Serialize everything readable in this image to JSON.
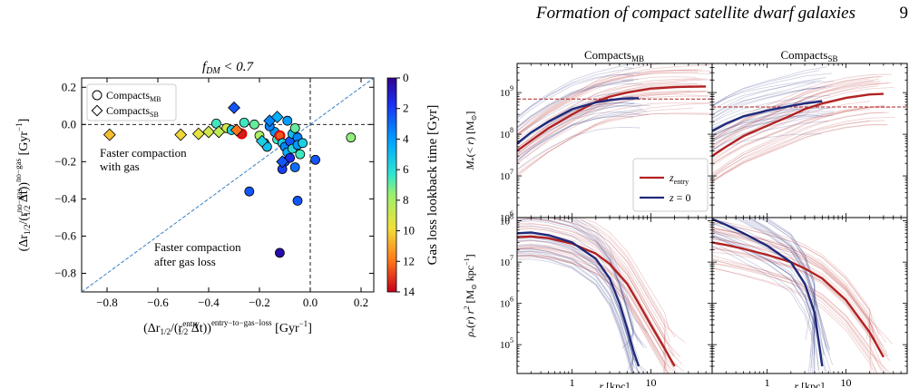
{
  "header": {
    "running_title": "Formation of compact satellite dwarf galaxies",
    "page_number": "9"
  },
  "colors": {
    "zentry_line": "#b22222",
    "z0_line": "#1f2a7a",
    "diag_line": "#3a7fc1",
    "ref_hline": "#b22222"
  },
  "chart_data": [
    {
      "type": "scatter",
      "title": "f_DM < 0.7",
      "xlabel": "(Δr_1/2/(r_1/2^entry Δt))^entry−to−gas−loss [Gyr^−1]",
      "ylabel": "(Δr_1/2/(r_1/2^no−gas Δt))^no−gas [Gyr^−1]",
      "xlim": [
        -0.9,
        0.25
      ],
      "ylim": [
        -0.9,
        0.25
      ],
      "xticks": [
        -0.8,
        -0.6,
        -0.4,
        -0.2,
        0.0,
        0.2
      ],
      "yticks": [
        -0.8,
        -0.6,
        -0.4,
        -0.2,
        0.0,
        0.2
      ],
      "xtick_labels": [
        "−0.8",
        "−0.6",
        "−0.4",
        "−0.2",
        "0.0",
        "0.2"
      ],
      "ytick_labels": [
        "−0.8",
        "−0.6",
        "−0.4",
        "−0.2",
        "0.0",
        "0.2"
      ],
      "legend": {
        "position": "top-left",
        "entries": [
          "Compacts_MB",
          "Compacts_SB"
        ]
      },
      "annotations": [
        "Faster compaction",
        "with gas",
        "Faster compaction",
        "after gas loss"
      ],
      "colorbar": {
        "label": "Gas loss lookback time [Gyr]",
        "range": [
          0,
          14
        ],
        "ticks": [
          "0",
          "2",
          "4",
          "6",
          "8",
          "10",
          "12",
          "14"
        ],
        "colormap": "jet-reversed"
      },
      "series": [
        {
          "name": "Compacts_MB",
          "marker": "circle",
          "points": [
            {
              "x": -0.37,
              "y": 0.005,
              "t": 6.5
            },
            {
              "x": -0.33,
              "y": -0.02,
              "t": 9.0
            },
            {
              "x": -0.31,
              "y": -0.03,
              "t": 5.5
            },
            {
              "x": -0.27,
              "y": -0.05,
              "t": 13.5,
              "highlight": true
            },
            {
              "x": -0.26,
              "y": 0.01,
              "t": 6.5
            },
            {
              "x": -0.22,
              "y": 0.0,
              "t": 7.0
            },
            {
              "x": -0.2,
              "y": -0.06,
              "t": 8.0
            },
            {
              "x": -0.18,
              "y": -0.1,
              "t": 6.0
            },
            {
              "x": -0.17,
              "y": -0.12,
              "t": 5.0
            },
            {
              "x": -0.14,
              "y": -0.04,
              "t": 4.0
            },
            {
              "x": -0.13,
              "y": -0.08,
              "t": 6.5
            },
            {
              "x": -0.12,
              "y": -0.06,
              "t": 12.5,
              "highlight": true
            },
            {
              "x": -0.11,
              "y": -0.1,
              "t": 5.5
            },
            {
              "x": -0.1,
              "y": -0.12,
              "t": 3.5
            },
            {
              "x": -0.09,
              "y": -0.15,
              "t": 4.5
            },
            {
              "x": -0.08,
              "y": -0.09,
              "t": 2.5
            },
            {
              "x": -0.07,
              "y": -0.05,
              "t": 5.0
            },
            {
              "x": -0.07,
              "y": -0.13,
              "t": 6.0
            },
            {
              "x": -0.06,
              "y": -0.02,
              "t": 7.0
            },
            {
              "x": -0.05,
              "y": -0.07,
              "t": 3.5
            },
            {
              "x": -0.05,
              "y": -0.11,
              "t": 4.0
            },
            {
              "x": -0.04,
              "y": -0.16,
              "t": 6.5
            },
            {
              "x": -0.03,
              "y": -0.1,
              "t": 5.5
            },
            {
              "x": -0.1,
              "y": -0.2,
              "t": 2.5
            },
            {
              "x": -0.08,
              "y": -0.18,
              "t": 1.5
            },
            {
              "x": -0.11,
              "y": -0.24,
              "t": 2.0
            },
            {
              "x": -0.06,
              "y": -0.23,
              "t": 3.0
            },
            {
              "x": 0.02,
              "y": -0.19,
              "t": 2.5
            },
            {
              "x": -0.05,
              "y": -0.41,
              "t": 2.5
            },
            {
              "x": -0.24,
              "y": -0.36,
              "t": 2.5
            },
            {
              "x": -0.12,
              "y": -0.69,
              "t": 0.5
            },
            {
              "x": 0.16,
              "y": -0.07,
              "t": 7.5
            },
            {
              "x": -0.16,
              "y": -0.01,
              "t": 3.5
            },
            {
              "x": -0.09,
              "y": 0.02,
              "t": 4.0
            }
          ]
        },
        {
          "name": "Compacts_SB",
          "marker": "diamond",
          "points": [
            {
              "x": -0.79,
              "y": -0.055,
              "t": 10.5
            },
            {
              "x": -0.51,
              "y": -0.055,
              "t": 10.0
            },
            {
              "x": -0.44,
              "y": -0.05,
              "t": 9.5
            },
            {
              "x": -0.4,
              "y": -0.04,
              "t": 9.0
            },
            {
              "x": -0.36,
              "y": -0.04,
              "t": 8.5
            },
            {
              "x": -0.3,
              "y": 0.09,
              "t": 2.5
            },
            {
              "x": -0.29,
              "y": -0.03,
              "t": 12.0
            },
            {
              "x": -0.16,
              "y": 0.02,
              "t": 3.5
            },
            {
              "x": -0.11,
              "y": -0.2,
              "t": 2.5
            },
            {
              "x": -0.13,
              "y": 0.04,
              "t": 4.5
            },
            {
              "x": -0.19,
              "y": -0.09,
              "t": 5.5
            }
          ]
        }
      ]
    },
    {
      "type": "line",
      "title": "Compacts_MB",
      "ylabel": "M_*(< r) [M_⊙]",
      "xscale": "log",
      "yscale": "log",
      "xlim": [
        0.2,
        60
      ],
      "ylim": [
        1000000.0,
        5000000000.0
      ],
      "reference_line_y": 700000000.0,
      "legend": {
        "position": "lower-right",
        "entries": [
          "z_entry",
          "z = 0"
        ]
      },
      "series": [
        {
          "name": "z_entry",
          "x": [
            0.2,
            0.3,
            0.5,
            1,
            2,
            3,
            5,
            10,
            20,
            30,
            50
          ],
          "y": [
            40000000.0,
            70000000.0,
            140000000.0,
            300000000.0,
            600000000.0,
            800000000.0,
            1000000000.0,
            1250000000.0,
            1350000000.0,
            1380000000.0,
            1400000000.0
          ]
        },
        {
          "name": "z = 0",
          "x": [
            0.2,
            0.3,
            0.5,
            1,
            2,
            3,
            4,
            5,
            6,
            7
          ],
          "y": [
            60000000.0,
            110000000.0,
            200000000.0,
            400000000.0,
            580000000.0,
            660000000.0,
            700000000.0,
            720000000.0,
            730000000.0,
            735000000.0
          ]
        }
      ]
    },
    {
      "type": "line",
      "title": "Compacts_SB",
      "xscale": "log",
      "yscale": "log",
      "xlim": [
        0.2,
        60
      ],
      "ylim": [
        1000000.0,
        5000000000.0
      ],
      "reference_line_y": 450000000.0,
      "series": [
        {
          "name": "z_entry",
          "x": [
            0.2,
            0.3,
            0.5,
            1,
            2,
            3,
            5,
            10,
            20,
            30
          ],
          "y": [
            30000000.0,
            50000000.0,
            90000000.0,
            160000000.0,
            280000000.0,
            400000000.0,
            550000000.0,
            750000000.0,
            900000000.0,
            930000000.0
          ]
        },
        {
          "name": "z = 0",
          "x": [
            0.2,
            0.3,
            0.5,
            1,
            2,
            3,
            5
          ],
          "y": [
            120000000.0,
            180000000.0,
            270000000.0,
            370000000.0,
            480000000.0,
            550000000.0,
            620000000.0
          ]
        }
      ]
    },
    {
      "type": "line",
      "ylabel": "ρ_*(r) r^2 [M_⊙ kpc^−1]",
      "xlabel": "r [kpc]",
      "xscale": "log",
      "yscale": "log",
      "xlim": [
        0.2,
        60
      ],
      "ylim": [
        20000.0,
        120000000.0
      ],
      "xticks": [
        1,
        10
      ],
      "xtick_labels": [
        "1",
        "10"
      ],
      "series": [
        {
          "name": "z_entry",
          "x": [
            0.2,
            0.3,
            0.5,
            1,
            2,
            3,
            5,
            7,
            10,
            15,
            20
          ],
          "y": [
            40000000.0,
            42000000.0,
            38000000.0,
            28000000.0,
            16000000.0,
            9000000.0,
            3000000.0,
            1000000.0,
            300000.0,
            80000.0,
            30000.0
          ]
        },
        {
          "name": "z = 0",
          "x": [
            0.2,
            0.3,
            0.5,
            1,
            2,
            3,
            4,
            5,
            6,
            7
          ],
          "y": [
            50000000.0,
            52000000.0,
            45000000.0,
            30000000.0,
            12000000.0,
            4000000.0,
            1000000.0,
            250000.0,
            70000.0,
            30000.0
          ]
        }
      ]
    },
    {
      "type": "line",
      "xlabel": "r [kpc]",
      "xscale": "log",
      "yscale": "log",
      "xlim": [
        0.2,
        60
      ],
      "ylim": [
        20000.0,
        120000000.0
      ],
      "xticks": [
        1,
        10
      ],
      "xtick_labels": [
        "1",
        "10"
      ],
      "series": [
        {
          "name": "z_entry",
          "x": [
            0.2,
            0.3,
            0.5,
            1,
            2,
            3,
            5,
            10,
            20,
            30
          ],
          "y": [
            30000000.0,
            26000000.0,
            21000000.0,
            15000000.0,
            10000000.0,
            7000000.0,
            4000000.0,
            1200000.0,
            200000.0,
            50000.0
          ]
        },
        {
          "name": "z = 0",
          "x": [
            0.2,
            0.3,
            0.5,
            1,
            2,
            3,
            4,
            5
          ],
          "y": [
            110000000.0,
            80000000.0,
            50000000.0,
            25000000.0,
            10000000.0,
            3000000.0,
            600000.0,
            30000.0
          ]
        }
      ]
    }
  ]
}
